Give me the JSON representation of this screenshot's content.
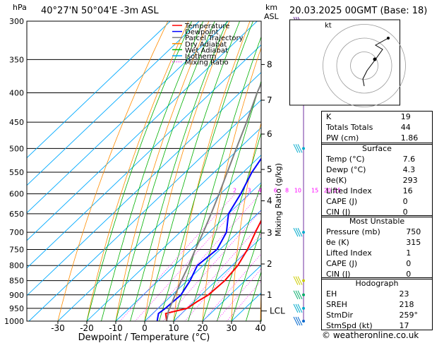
{
  "header": {
    "pressure_unit": "hPa",
    "location": "40°27'N  50°04'E  -3m  ASL",
    "km_label": "km",
    "asl_label": "ASL",
    "datetime": "20.03.2025  00GMT  (Base: 18)"
  },
  "chart_data": {
    "type": "line",
    "xlabel": "Dewpoint / Temperature (°C)",
    "mixing_ratio_label": "Mixing Ratio (g/kg)",
    "x_ticks": [
      -30,
      -20,
      -10,
      0,
      10,
      20,
      30,
      40
    ],
    "pressure_ticks": [
      300,
      350,
      400,
      450,
      500,
      550,
      600,
      650,
      700,
      750,
      800,
      850,
      900,
      950,
      1000
    ],
    "km_ticks": [
      {
        "km": "8",
        "p": 357
      },
      {
        "km": "7",
        "p": 412
      },
      {
        "km": "6",
        "p": 472
      },
      {
        "km": "5",
        "p": 544
      },
      {
        "km": "4",
        "p": 617
      },
      {
        "km": "3",
        "p": 702
      },
      {
        "km": "2",
        "p": 795
      },
      {
        "km": "1",
        "p": 900
      }
    ],
    "lcl": {
      "label": "LCL",
      "p": 960
    },
    "mixing_ratio_values": [
      "2",
      "3",
      "4",
      "6",
      "8",
      "10",
      "15",
      "20",
      "25"
    ],
    "legend": [
      {
        "name": "Temperature",
        "color": "#ff0000"
      },
      {
        "name": "Dewpoint",
        "color": "#0000ff"
      },
      {
        "name": "Parcel Trajectory",
        "color": "#808080"
      },
      {
        "name": "Dry Adiabat",
        "color": "#ff8c00"
      },
      {
        "name": "Wet Adiabat",
        "color": "#00b000"
      },
      {
        "name": "Isotherm",
        "color": "#00aaff"
      },
      {
        "name": "Mixing Ratio",
        "color": "#ff00ff"
      }
    ],
    "series": [
      {
        "name": "Temperature",
        "points": [
          [
            1000,
            7.6
          ],
          [
            970,
            4.5
          ],
          [
            950,
            10
          ],
          [
            925,
            11
          ],
          [
            900,
            12.5
          ],
          [
            850,
            13
          ],
          [
            800,
            12
          ],
          [
            750,
            9.5
          ],
          [
            700,
            6
          ],
          [
            650,
            2.5
          ],
          [
            600,
            -1.5
          ],
          [
            550,
            -6
          ],
          [
            500,
            -11
          ],
          [
            450,
            -17
          ],
          [
            400,
            -23
          ],
          [
            350,
            -31
          ],
          [
            300,
            -39
          ]
        ]
      },
      {
        "name": "Dewpoint",
        "points": [
          [
            1000,
            4.3
          ],
          [
            970,
            2
          ],
          [
            950,
            2.5
          ],
          [
            900,
            3
          ],
          [
            850,
            1
          ],
          [
            800,
            -2
          ],
          [
            750,
            -1
          ],
          [
            700,
            -4
          ],
          [
            650,
            -10
          ],
          [
            600,
            -13
          ],
          [
            550,
            -17
          ],
          [
            500,
            -20
          ],
          [
            450,
            -23
          ],
          [
            400,
            -28
          ],
          [
            350,
            -34
          ],
          [
            300,
            -52
          ]
        ]
      },
      {
        "name": "Parcel Trajectory",
        "points": [
          [
            1000,
            7.6
          ],
          [
            960,
            4.5
          ],
          [
            900,
            1
          ],
          [
            850,
            -2
          ],
          [
            800,
            -5
          ],
          [
            750,
            -8.5
          ],
          [
            700,
            -12
          ],
          [
            650,
            -16
          ],
          [
            600,
            -20.5
          ],
          [
            550,
            -25.5
          ],
          [
            500,
            -31
          ],
          [
            450,
            -37
          ],
          [
            400,
            -44
          ],
          [
            350,
            -51
          ],
          [
            300,
            -59
          ]
        ]
      }
    ]
  },
  "hodograph": {
    "unit": "kt"
  },
  "indices": [
    {
      "label": "K",
      "value": "19"
    },
    {
      "label": "Totals Totals",
      "value": "44"
    },
    {
      "label": "PW (cm)",
      "value": "1.86"
    }
  ],
  "surface": {
    "title": "Surface",
    "rows": [
      {
        "label": "Temp (°C)",
        "value": "7.6"
      },
      {
        "label": "Dewp (°C)",
        "value": "4.3"
      },
      {
        "label": "θe(K)",
        "value": "293"
      },
      {
        "label": "Lifted Index",
        "value": "16"
      },
      {
        "label": "CAPE (J)",
        "value": "0"
      },
      {
        "label": "CIN (J)",
        "value": "0"
      }
    ]
  },
  "most_unstable": {
    "title": "Most Unstable",
    "rows": [
      {
        "label": "Pressure (mb)",
        "value": "750"
      },
      {
        "label": "θe (K)",
        "value": "315"
      },
      {
        "label": "Lifted Index",
        "value": "1"
      },
      {
        "label": "CAPE (J)",
        "value": "0"
      },
      {
        "label": "CIN (J)",
        "value": "0"
      }
    ]
  },
  "hodograph_table": {
    "title": "Hodograph",
    "rows": [
      {
        "label": "EH",
        "value": "23"
      },
      {
        "label": "SREH",
        "value": "218"
      },
      {
        "label": "StmDir",
        "value": "259°"
      },
      {
        "label": "StmSpd (kt)",
        "value": "17"
      }
    ]
  },
  "copyright": "© weatheronline.co.uk"
}
